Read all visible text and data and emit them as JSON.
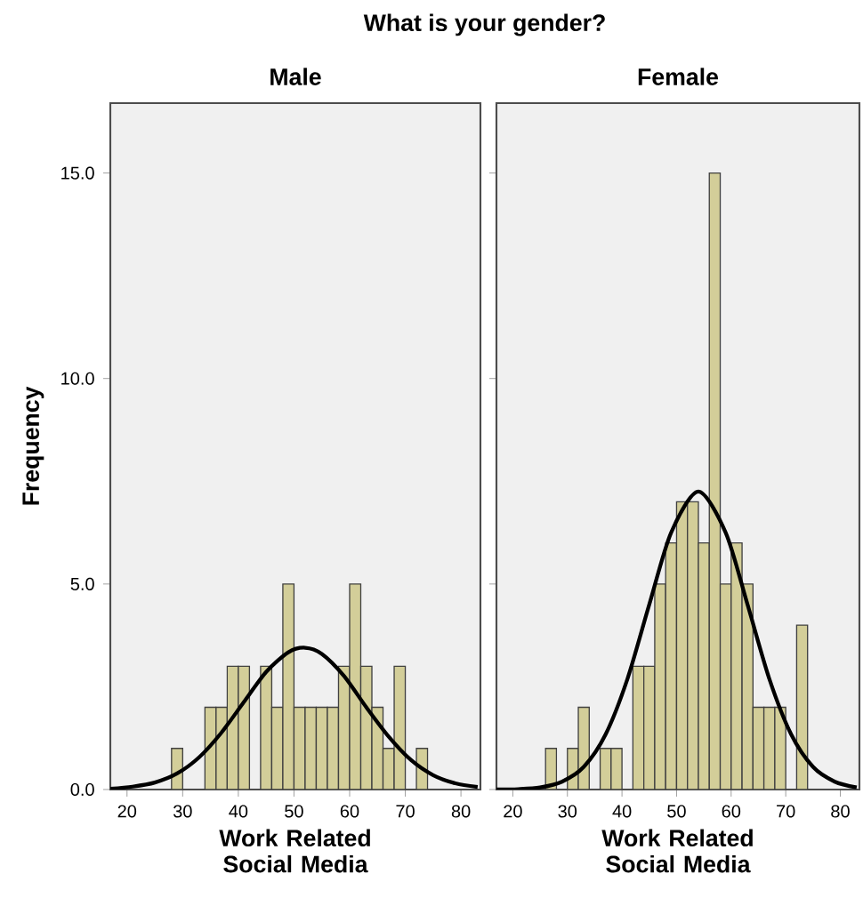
{
  "chart_data": [
    {
      "type": "histogram",
      "title": "What is your gender?",
      "subtitle": "Male",
      "xlabel": "Work Related Social Media",
      "ylabel": "Frequency",
      "bins": [
        26,
        28,
        30,
        32,
        34,
        36,
        38,
        40,
        42,
        44,
        46,
        48,
        50,
        52,
        54,
        56,
        58,
        60,
        62,
        64,
        66,
        68,
        70,
        72,
        74
      ],
      "series": [
        {
          "color": "#d3ce99",
          "values": [
            0,
            1,
            0,
            0,
            2,
            2,
            3,
            3,
            0,
            3,
            2,
            5,
            2,
            2,
            2,
            2,
            3,
            5,
            3,
            2,
            1,
            3,
            0,
            1
          ]
        },
        {
          "type": "line",
          "color": "#000000",
          "x": [
            17,
            21,
            25,
            29,
            33,
            37,
            41,
            45,
            49,
            52,
            55,
            59,
            63,
            67,
            71,
            75,
            79,
            83
          ],
          "values": [
            0.02,
            0.07,
            0.17,
            0.39,
            0.79,
            1.39,
            2.13,
            2.86,
            3.34,
            3.45,
            3.3,
            2.76,
            2.0,
            1.29,
            0.72,
            0.35,
            0.15,
            0.06
          ]
        }
      ],
      "xlim": [
        17,
        83.5
      ],
      "ylim": [
        0,
        16.7
      ],
      "xticks": [
        20,
        30,
        40,
        50,
        60,
        70,
        80
      ],
      "yticks": [
        {
          "value": 0,
          "label": "0.0"
        },
        {
          "value": 5,
          "label": "5.0"
        },
        {
          "value": 10,
          "label": "10.0"
        },
        {
          "value": 15,
          "label": "15.0"
        }
      ],
      "grid": false
    },
    {
      "type": "histogram",
      "subtitle": "Female",
      "xlabel": "Work Related Social Media",
      "bins": [
        26,
        28,
        30,
        32,
        34,
        36,
        38,
        40,
        42,
        44,
        46,
        48,
        50,
        52,
        54,
        56,
        58,
        60,
        62,
        64,
        66,
        68,
        70,
        72,
        74
      ],
      "series": [
        {
          "color": "#d3ce99",
          "values": [
            1,
            0,
            1,
            2,
            0,
            1,
            1,
            0,
            3,
            3,
            5,
            6,
            7,
            7,
            6,
            15,
            5,
            6,
            5,
            2,
            2,
            2,
            0,
            4
          ]
        },
        {
          "type": "line",
          "color": "#000000",
          "x": [
            17,
            21,
            25,
            29,
            33,
            37,
            41,
            45,
            49,
            54,
            59,
            63,
            67,
            71,
            75,
            79,
            83
          ],
          "values": [
            0.0,
            0.01,
            0.05,
            0.19,
            0.55,
            1.34,
            2.69,
            4.5,
            6.25,
            7.25,
            6.25,
            4.5,
            2.69,
            1.34,
            0.55,
            0.19,
            0.05
          ]
        }
      ],
      "xlim": [
        17,
        83.5
      ],
      "ylim": [
        0,
        16.7
      ],
      "xticks": [
        20,
        30,
        40,
        50,
        60,
        70,
        80
      ],
      "yticks": [
        {
          "value": 0,
          "label": null
        },
        {
          "value": 5,
          "label": null
        },
        {
          "value": 10,
          "label": null
        },
        {
          "value": 15,
          "label": null
        }
      ],
      "tick_labels": "x",
      "grid": false
    }
  ]
}
